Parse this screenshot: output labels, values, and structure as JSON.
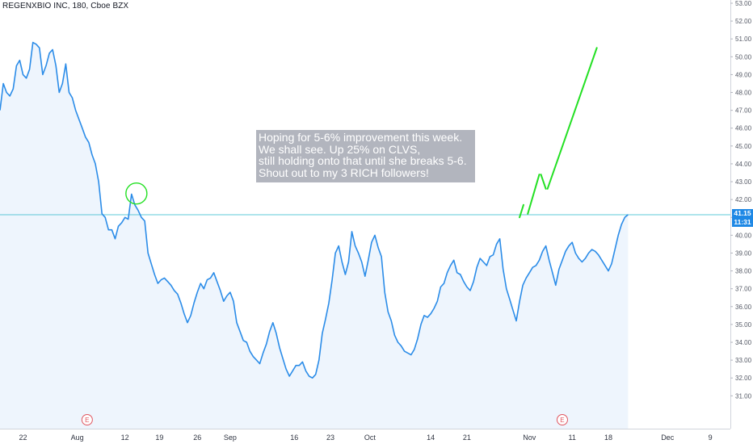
{
  "header": {
    "symbol_line": "REGENXBIO INC, 180, Cboe BZX"
  },
  "annotation": {
    "text": "Hoping for 5-6% improvement this week.\nWe shall see. Up 25% on CLVS,\nstill holding onto that until she breaks 5-6.\nShout out to my 3 RICH followers!"
  },
  "price_badge": {
    "price": "41.15",
    "countdown": "11:31"
  },
  "colors": {
    "line": "#2b8ce8",
    "area": "#eef5fd",
    "projection": "#23e023",
    "highlight_circle": "#23e023",
    "price_line": "#5ec8d8",
    "earnings": "#e0555f",
    "badge": "#1e88e5"
  },
  "earnings_markers": [
    {
      "label": "E",
      "x_index": 26.5
    },
    {
      "label": "E",
      "x_index": 171
    }
  ],
  "chart_data": {
    "type": "line",
    "title": "REGENXBIO INC, 180, Cboe BZX",
    "xlabel": "",
    "ylabel": "",
    "ylim": [
      30.2,
      53.0
    ],
    "y_ticks": [
      31.0,
      32.0,
      33.0,
      34.0,
      35.0,
      36.0,
      37.0,
      38.0,
      39.0,
      40.0,
      41.0,
      42.0,
      43.0,
      44.0,
      45.0,
      46.0,
      47.0,
      48.0,
      49.0,
      50.0,
      51.0,
      52.0,
      53.0
    ],
    "x_tick_labels": [
      {
        "label": "22",
        "x_index": 7
      },
      {
        "label": "Aug",
        "x_index": 23.5
      },
      {
        "label": "12",
        "x_index": 38
      },
      {
        "label": "19",
        "x_index": 48.5
      },
      {
        "label": "26",
        "x_index": 60
      },
      {
        "label": "Sep",
        "x_index": 70
      },
      {
        "label": "16",
        "x_index": 89.5
      },
      {
        "label": "23",
        "x_index": 100.5
      },
      {
        "label": "Oct",
        "x_index": 112.5
      },
      {
        "label": "14",
        "x_index": 131
      },
      {
        "label": "21",
        "x_index": 142
      },
      {
        "label": "Nov",
        "x_index": 161
      },
      {
        "label": "11",
        "x_index": 174
      },
      {
        "label": "18",
        "x_index": 185
      },
      {
        "label": "Dec",
        "x_index": 203
      },
      {
        "label": "9",
        "x_index": 216
      }
    ],
    "x_range": [
      0,
      222
    ],
    "current_price": 41.15,
    "series": [
      {
        "values": [
          47.0,
          48.5,
          48.0,
          47.8,
          48.2,
          49.5,
          49.8,
          49.0,
          48.8,
          49.3,
          50.8,
          50.7,
          50.5,
          49.0,
          49.5,
          50.2,
          50.4,
          49.5,
          48.0,
          48.5,
          49.6,
          48.0,
          47.7,
          47.0,
          46.5,
          46.0,
          45.5,
          45.2,
          44.5,
          44.0,
          43.0,
          41.2,
          41.0,
          40.3,
          40.3,
          39.8,
          40.5,
          40.7,
          41.0,
          40.9,
          42.3,
          41.7,
          41.4,
          41.0,
          40.8,
          39.0,
          38.4,
          37.8,
          37.3,
          37.5,
          37.6,
          37.4,
          37.2,
          36.9,
          36.7,
          36.2,
          35.6,
          35.1,
          35.5,
          36.2,
          36.8,
          37.3,
          37.0,
          37.5,
          37.6,
          37.9,
          37.4,
          36.9,
          36.3,
          36.6,
          36.8,
          36.3,
          35.1,
          34.6,
          34.1,
          34.0,
          33.5,
          33.2,
          33.0,
          32.8,
          33.4,
          33.9,
          34.6,
          35.1,
          34.5,
          33.7,
          33.1,
          32.5,
          32.1,
          32.4,
          32.7,
          32.7,
          32.9,
          32.4,
          32.1,
          32.0,
          32.2,
          33.0,
          34.5,
          35.3,
          36.2,
          37.5,
          39.0,
          39.4,
          38.5,
          37.8,
          38.5,
          40.2,
          39.4,
          39.0,
          38.5,
          37.7,
          38.6,
          39.6,
          40.0,
          39.3,
          38.8,
          36.8,
          35.7,
          35.2,
          34.4,
          34.0,
          33.8,
          33.5,
          33.4,
          33.3,
          33.6,
          34.2,
          35.0,
          35.5,
          35.4,
          35.6,
          35.9,
          36.3,
          37.1,
          37.3,
          37.9,
          38.3,
          38.6,
          37.9,
          37.8,
          37.4,
          37.1,
          36.9,
          37.4,
          38.2,
          38.7,
          38.5,
          38.3,
          38.8,
          38.9,
          39.5,
          39.8,
          38.1,
          37.0,
          36.4,
          35.8,
          35.2,
          36.3,
          37.2,
          37.6,
          37.9,
          38.2,
          38.3,
          38.6,
          39.1,
          39.4,
          38.6,
          37.9,
          37.2,
          38.1,
          38.6,
          39.1,
          39.4,
          39.6,
          39.0,
          38.7,
          38.5,
          38.7,
          39.0,
          39.2,
          39.1,
          38.9,
          38.6,
          38.3,
          38.0,
          38.4,
          39.2,
          40.0,
          40.6,
          41.0,
          41.15
        ]
      },
      {
        "name": "projection",
        "segments": [
          {
            "x": [
              158,
              159.2
            ],
            "y": [
              41.0,
              41.7
            ]
          },
          {
            "x": [
              160.5,
              164
            ],
            "y": [
              41.2,
              43.4
            ]
          },
          {
            "x": [
              164.5,
              166
            ],
            "y": [
              43.4,
              42.6
            ]
          },
          {
            "x": [
              166.5,
              181.5
            ],
            "y": [
              42.6,
              50.5
            ]
          }
        ]
      }
    ],
    "highlight": {
      "x_index": 40.5,
      "y": 42.2
    }
  }
}
